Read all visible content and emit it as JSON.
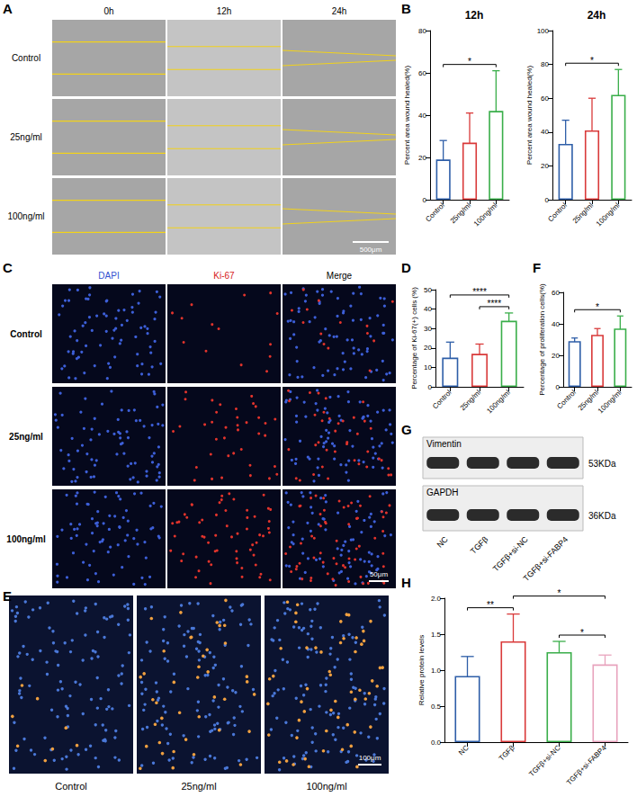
{
  "chart_data": [
    {
      "type": "bar",
      "panel": "B",
      "title": "12h",
      "y_label": "Percent area wound healed(%)",
      "categories": [
        "Control",
        "25ng/ml",
        "100ng/ml"
      ],
      "values": [
        19,
        27,
        42
      ],
      "errors": [
        9,
        14,
        19
      ],
      "colors": [
        "#2e5ea8",
        "#d93a3a",
        "#3aae4a"
      ],
      "ylim": [
        0,
        80
      ],
      "yticks": [
        0,
        20,
        40,
        60,
        80
      ],
      "grid": false,
      "significance": [
        {
          "from": "Control",
          "to": "100ng/ml",
          "label": "*"
        }
      ]
    },
    {
      "type": "bar",
      "panel": "B",
      "title": "24h",
      "y_label": "Percent area wound healed(%)",
      "categories": [
        "Control",
        "25ng/ml",
        "100ng/ml"
      ],
      "values": [
        33,
        41,
        62
      ],
      "errors": [
        14,
        19,
        15
      ],
      "colors": [
        "#2e5ea8",
        "#d93a3a",
        "#3aae4a"
      ],
      "ylim": [
        0,
        100
      ],
      "yticks": [
        0,
        20,
        40,
        60,
        80,
        100
      ],
      "grid": false,
      "significance": [
        {
          "from": "Control",
          "to": "100ng/ml",
          "label": "*"
        }
      ]
    },
    {
      "type": "bar",
      "panel": "D",
      "y_label": "Percentage of Ki-67(+) cells (%)",
      "categories": [
        "Control",
        "25ng/ml",
        "100ng/ml"
      ],
      "values": [
        15,
        17,
        34
      ],
      "errors": [
        8,
        5,
        4
      ],
      "colors": [
        "#2e5ea8",
        "#d93a3a",
        "#3aae4a"
      ],
      "ylim": [
        0,
        50
      ],
      "yticks": [
        0,
        10,
        20,
        30,
        40,
        50
      ],
      "grid": false,
      "significance": [
        {
          "from": "25ng/ml",
          "to": "100ng/ml",
          "label": "****"
        },
        {
          "from": "Control",
          "to": "100ng/ml",
          "label": "****"
        }
      ]
    },
    {
      "type": "bar",
      "panel": "F",
      "y_label": "Percentage of proliferation cells(%)",
      "categories": [
        "Control",
        "25ng/ml",
        "100ng/ml"
      ],
      "values": [
        29,
        33,
        37
      ],
      "errors": [
        2,
        4,
        8
      ],
      "colors": [
        "#2e5ea8",
        "#d93a3a",
        "#3aae4a"
      ],
      "ylim": [
        0,
        60
      ],
      "yticks": [
        0,
        20,
        40,
        60
      ],
      "grid": false,
      "significance": [
        {
          "from": "Control",
          "to": "100ng/ml",
          "label": "*"
        }
      ]
    },
    {
      "type": "bar",
      "panel": "H",
      "y_label": "Relative protein levels",
      "categories": [
        "NC",
        "TGFβ",
        "TGFβ+si-NC",
        "TGFβ+si-FABP4"
      ],
      "values": [
        0.92,
        1.4,
        1.25,
        1.08
      ],
      "errors": [
        0.27,
        0.38,
        0.15,
        0.13
      ],
      "colors": [
        "#2e5ea8",
        "#d93a3a",
        "#3aae4a",
        "#e8a3bd"
      ],
      "ylim": [
        0,
        2
      ],
      "yticks": [
        {
          "value": 0,
          "label": "0.0"
        },
        0.5,
        {
          "value": 1,
          "label": "1.0"
        },
        1.5,
        {
          "value": 2,
          "label": "2.0"
        }
      ],
      "grid": false,
      "significance": [
        {
          "from": "NC",
          "to": "TGFβ",
          "label": "**"
        },
        {
          "from": "TGFβ+si-NC",
          "to": "TGFβ+si-FABP4",
          "label": "*"
        },
        {
          "from": "TGFβ",
          "to": "TGFβ+si-FABP4",
          "label": "*"
        }
      ]
    }
  ],
  "figure": {
    "A": {
      "panel": "A",
      "columns": [
        "0h",
        "12h",
        "24h"
      ],
      "rows": [
        "Control",
        "25ng/ml",
        "100ng/ml"
      ],
      "scale_bar": "500μm"
    },
    "C": {
      "panel": "C",
      "columns": [
        "DAPI",
        "Ki-67",
        "Merge"
      ],
      "rows": [
        "Control",
        "25ng/ml",
        "100ng/ml"
      ],
      "scale_bar": "50μm"
    },
    "E": {
      "panel": "E",
      "columns": [
        "Control",
        "25ng/ml",
        "100ng/ml"
      ],
      "scale_bar": "100μm"
    },
    "G": {
      "panel": "G",
      "bands": [
        {
          "name": "Vimentin",
          "size": "53KDa"
        },
        {
          "name": "GAPDH",
          "size": "36KDa"
        }
      ],
      "lanes": [
        "NC",
        "TGFβ",
        "TGFβ+si-NC",
        "TGFβ+si-FABP4"
      ]
    }
  }
}
